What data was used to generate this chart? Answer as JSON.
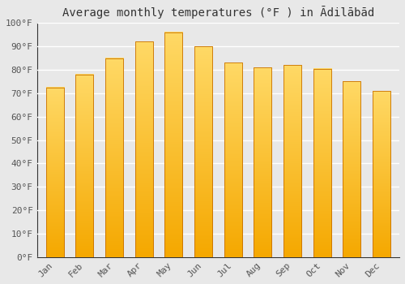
{
  "title": "Average monthly temperatures (°F ) in Ādilābād",
  "months": [
    "Jan",
    "Feb",
    "Mar",
    "Apr",
    "May",
    "Jun",
    "Jul",
    "Aug",
    "Sep",
    "Oct",
    "Nov",
    "Dec"
  ],
  "values": [
    72.5,
    78,
    85,
    92,
    96,
    90,
    83,
    81,
    82,
    80.5,
    75,
    71
  ],
  "bar_color_bottom": "#F5A800",
  "bar_color_top": "#FFD966",
  "bar_edge_color": "#C87000",
  "ylim": [
    0,
    100
  ],
  "yticks": [
    0,
    10,
    20,
    30,
    40,
    50,
    60,
    70,
    80,
    90,
    100
  ],
  "ytick_labels": [
    "0°F",
    "10°F",
    "20°F",
    "30°F",
    "40°F",
    "50°F",
    "60°F",
    "70°F",
    "80°F",
    "90°F",
    "100°F"
  ],
  "background_color": "#e8e8e8",
  "plot_bg_color": "#e8e8e8",
  "grid_color": "#ffffff",
  "title_fontsize": 10,
  "tick_fontsize": 8,
  "tick_color": "#555555",
  "spine_color": "#333333"
}
